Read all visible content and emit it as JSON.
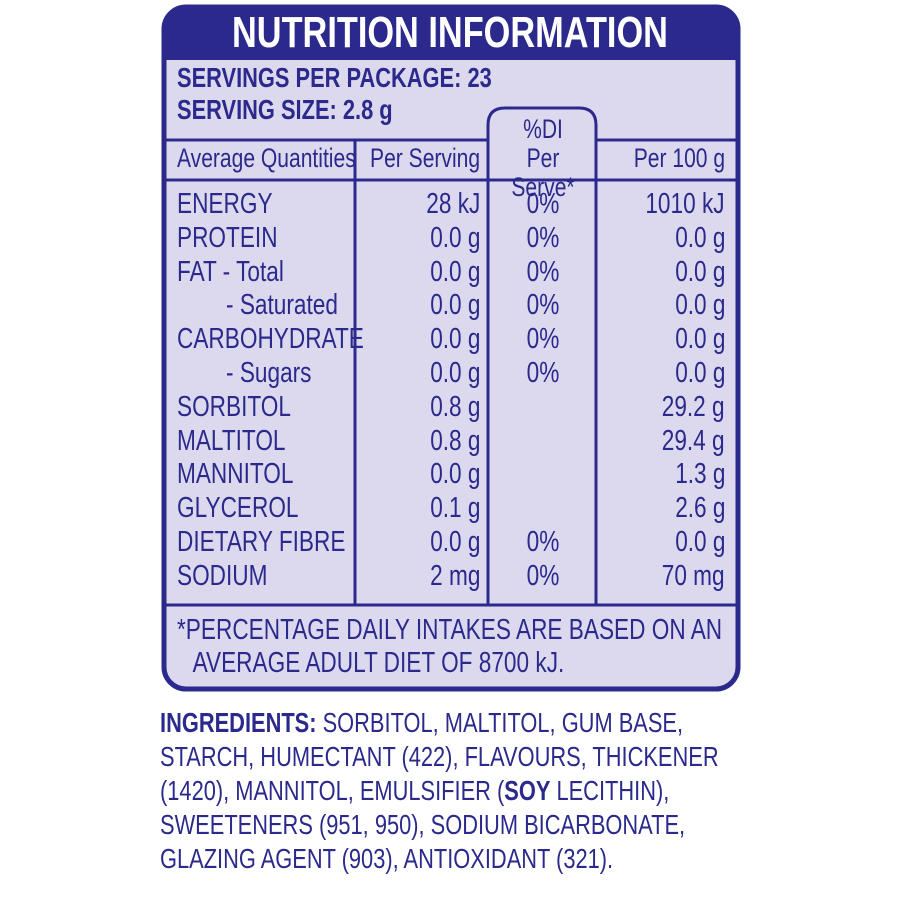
{
  "header": {
    "title": "NUTRITION INFORMATION"
  },
  "servings": {
    "per_package": "SERVINGS PER PACKAGE: 23",
    "size": "SERVING SIZE: 2.8 g"
  },
  "table": {
    "columns": [
      "Average Quantities",
      "Per Serving",
      "%DI Per Serve*",
      "Per 100 g"
    ],
    "rows": [
      {
        "name": "ENERGY",
        "per_serving": "28 kJ",
        "di": "0%",
        "per_100g": "1010 kJ"
      },
      {
        "name": "PROTEIN",
        "per_serving": "0.0 g",
        "di": "0%",
        "per_100g": "0.0 g"
      },
      {
        "name": "FAT  - Total",
        "per_serving": "0.0 g",
        "di": "0%",
        "per_100g": "0.0 g"
      },
      {
        "name": "- Saturated",
        "indent": true,
        "per_serving": "0.0 g",
        "di": "0%",
        "per_100g": "0.0 g"
      },
      {
        "name": "CARBOHYDRATE",
        "per_serving": "0.0 g",
        "di": "0%",
        "per_100g": "0.0 g"
      },
      {
        "name": "- Sugars",
        "indent": true,
        "per_serving": "0.0 g",
        "di": "0%",
        "per_100g": "0.0 g"
      },
      {
        "name": "SORBITOL",
        "per_serving": "0.8 g",
        "per_100g": "29.2 g"
      },
      {
        "name": "MALTITOL",
        "per_serving": "0.8 g",
        "per_100g": "29.4 g"
      },
      {
        "name": "MANNITOL",
        "per_serving": "0.0 g",
        "per_100g": "1.3 g"
      },
      {
        "name": "GLYCEROL",
        "per_serving": "0.1 g",
        "per_100g": "2.6 g"
      },
      {
        "name": "DIETARY FIBRE",
        "per_serving": "0.0 g",
        "di": "0%",
        "per_100g": "0.0 g"
      },
      {
        "name": "SODIUM",
        "per_serving": "2 mg",
        "di": "0%",
        "per_100g": "70 mg"
      }
    ],
    "footnote": "*PERCENTAGE DAILY INTAKES ARE BASED ON AN AVERAGE ADULT DIET OF 8700 kJ."
  },
  "ingredients": {
    "label": "INGREDIENTS:",
    "text_before": " SORBITOL, MALTITOL, GUM BASE, STARCH, HUMECTANT (422), FLAVOURS, THICKENER (1420), MANNITOL, EMULSIFIER (",
    "allergen": "SOY",
    "text_after": " LECITHIN), SWEETENERS (951, 950), SODIUM BICARBONATE, GLAZING AGENT (903), ANTIOXIDANT (321)."
  }
}
